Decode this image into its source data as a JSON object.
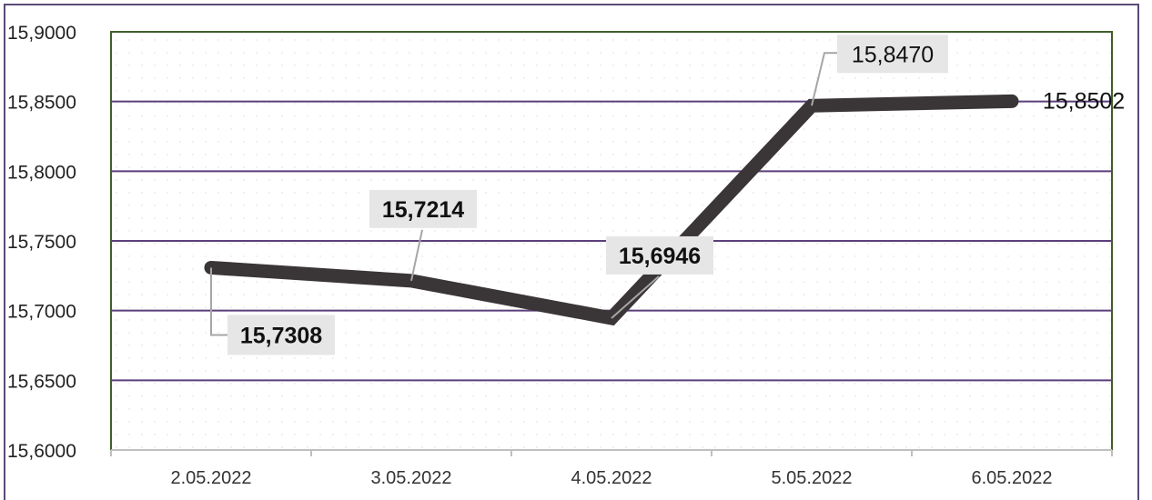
{
  "chart_data": {
    "type": "line",
    "title": "",
    "xlabel": "",
    "ylabel": "",
    "categories": [
      "2.05.2022",
      "3.05.2022",
      "4.05.2022",
      "5.05.2022",
      "6.05.2022"
    ],
    "series": [
      {
        "values": [
          15.7308,
          15.7214,
          15.6946,
          15.847,
          15.8502
        ],
        "data_labels": [
          "15,7308",
          "15,7214",
          "15,6946",
          "15,8470",
          "15,8502"
        ],
        "color": "#3a3536"
      }
    ],
    "ylim": [
      15.6,
      15.9
    ],
    "yticks": [
      15.6,
      15.65,
      15.7,
      15.75,
      15.8,
      15.85,
      15.9
    ],
    "ytick_labels": [
      "15,6000",
      "15,6500",
      "15,7000",
      "15,7500",
      "15,8000",
      "15,8500",
      "15,9000"
    ],
    "grid": true,
    "legend": "none",
    "colors": {
      "gridline": "#5b3f7a",
      "plot_border": "#3f5f2a",
      "frame_border": "#5b4a78",
      "label_box": "#e6e6e6",
      "highlight_label": "#ff0000"
    }
  }
}
